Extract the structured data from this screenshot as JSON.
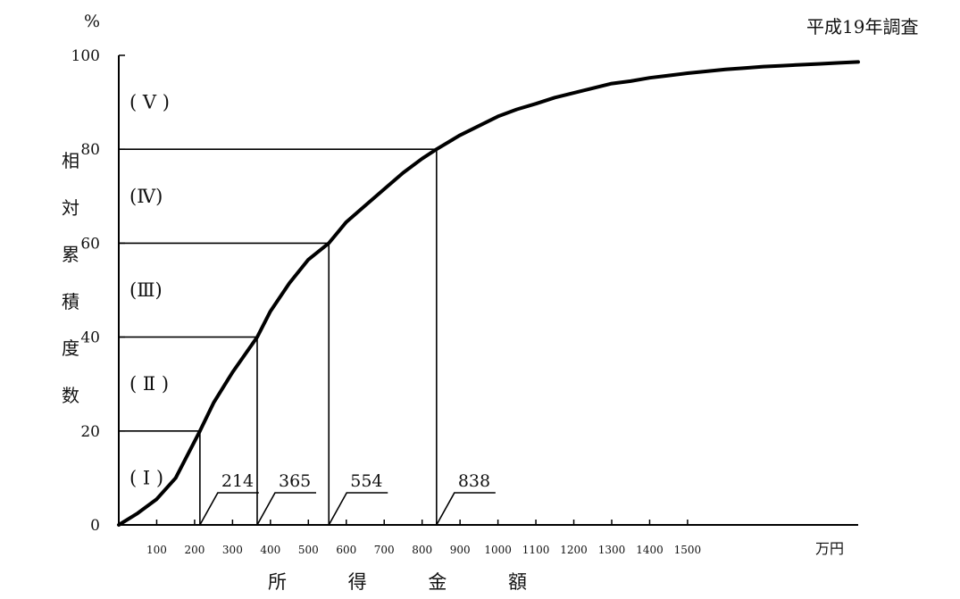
{
  "chart_data": {
    "type": "line",
    "title": "",
    "survey_label": "平成19年調査",
    "y_unit": "%",
    "x_unit": "万円",
    "ylabel": "相対累積度数",
    "ylabel_chars": [
      "相",
      "対",
      "累",
      "積",
      "度",
      "数"
    ],
    "xlabel": "所得金額",
    "xlabel_chars": [
      "所",
      "得",
      "金",
      "額"
    ],
    "ylim": [
      0,
      100
    ],
    "yticks": [
      0,
      20,
      40,
      60,
      80,
      100
    ],
    "ytick_labels": [
      "0",
      "20",
      "40",
      "60",
      "80",
      "100"
    ],
    "x_max": 1950,
    "xticks": [
      100,
      200,
      300,
      400,
      500,
      600,
      700,
      800,
      900,
      1000,
      1100,
      1200,
      1300,
      1400,
      1500
    ],
    "xtick_labels": [
      "100",
      "200",
      "300",
      "400",
      "500",
      "600",
      "700",
      "800",
      "900",
      "1000",
      "1100",
      "1200",
      "1300",
      "1400",
      "1500"
    ],
    "curve": {
      "x": [
        0,
        50,
        100,
        150,
        214,
        250,
        300,
        365,
        400,
        450,
        500,
        554,
        600,
        650,
        700,
        750,
        800,
        838,
        900,
        950,
        1000,
        1050,
        1100,
        1150,
        1200,
        1250,
        1300,
        1350,
        1400,
        1450,
        1500,
        1550,
        1600,
        1650,
        1700,
        1750,
        1800,
        1850,
        1900,
        1950
      ],
      "y": [
        0,
        2.5,
        5.5,
        10,
        20,
        26,
        32.5,
        40,
        45.5,
        51.5,
        56.5,
        60,
        64.5,
        68,
        71.5,
        75,
        78,
        80,
        83,
        85,
        87,
        88.5,
        89.7,
        91,
        92,
        93,
        94,
        94.5,
        95.2,
        95.7,
        96.2,
        96.6,
        97,
        97.3,
        97.6,
        97.8,
        98,
        98.2,
        98.4,
        98.6
      ]
    },
    "quintiles": [
      {
        "label": "( Ⅰ )",
        "y_from": 0,
        "y_to": 20,
        "boundary_x": 214,
        "boundary_y": 20,
        "boundary_label": "214"
      },
      {
        "label": "( Ⅱ )",
        "y_from": 20,
        "y_to": 40,
        "boundary_x": 365,
        "boundary_y": 40,
        "boundary_label": "365"
      },
      {
        "label": "(Ⅲ)",
        "y_from": 40,
        "y_to": 60,
        "boundary_x": 554,
        "boundary_y": 60,
        "boundary_label": "554"
      },
      {
        "label": "(Ⅳ)",
        "y_from": 60,
        "y_to": 80,
        "boundary_x": 838,
        "boundary_y": 80,
        "boundary_label": "838"
      },
      {
        "label": "( Ⅴ )",
        "y_from": 80,
        "y_to": 100
      }
    ]
  }
}
